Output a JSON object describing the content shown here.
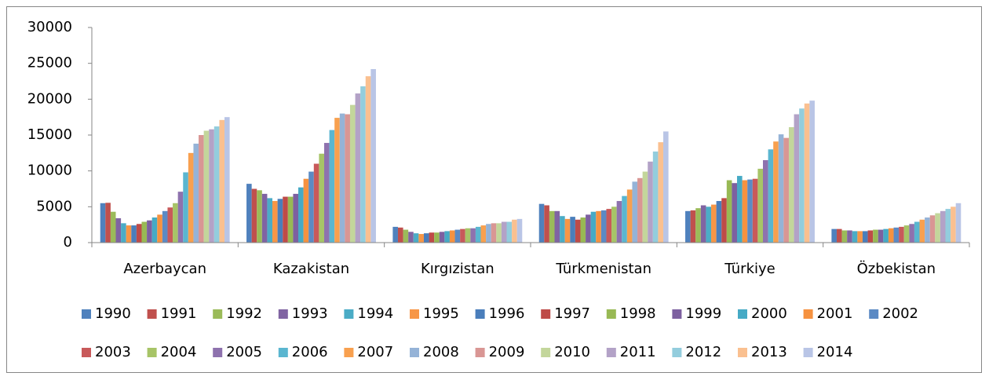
{
  "chart_data": {
    "type": "bar",
    "categories": [
      "Azerbaycan",
      "Kazakistan",
      "Kırgızistan",
      "Türkmenistan",
      "Türkiye",
      "Özbekistan"
    ],
    "ylim": [
      0,
      30000
    ],
    "yticks": [
      0,
      5000,
      10000,
      15000,
      20000,
      25000,
      30000
    ],
    "grid": false,
    "legend": "bottom",
    "series": [
      {
        "name": "1990",
        "color": "#4F81BD",
        "values": [
          5500,
          8200,
          2200,
          5400,
          4400,
          1900
        ]
      },
      {
        "name": "1991",
        "color": "#C0504D",
        "values": [
          5550,
          7500,
          2100,
          5200,
          4500,
          1900
        ]
      },
      {
        "name": "1992",
        "color": "#9BBB59",
        "values": [
          4300,
          7300,
          1800,
          4400,
          4800,
          1700
        ]
      },
      {
        "name": "1993",
        "color": "#8064A2",
        "values": [
          3400,
          6800,
          1500,
          4400,
          5200,
          1700
        ]
      },
      {
        "name": "1994",
        "color": "#4BACC6",
        "values": [
          2700,
          6200,
          1300,
          3700,
          5000,
          1600
        ]
      },
      {
        "name": "1995",
        "color": "#F79646",
        "values": [
          2400,
          5800,
          1200,
          3300,
          5300,
          1600
        ]
      },
      {
        "name": "1996",
        "color": "#4A7EBB",
        "values": [
          2400,
          6100,
          1300,
          3600,
          5800,
          1600
        ]
      },
      {
        "name": "1997",
        "color": "#BE4B48",
        "values": [
          2600,
          6400,
          1400,
          3200,
          6200,
          1700
        ]
      },
      {
        "name": "1998",
        "color": "#98B954",
        "values": [
          2900,
          6400,
          1400,
          3500,
          8700,
          1800
        ]
      },
      {
        "name": "1999",
        "color": "#7D60A0",
        "values": [
          3100,
          6800,
          1500,
          3900,
          8300,
          1800
        ]
      },
      {
        "name": "2000",
        "color": "#46AAC5",
        "values": [
          3500,
          7700,
          1600,
          4300,
          9300,
          1900
        ]
      },
      {
        "name": "2001",
        "color": "#F69240",
        "values": [
          3900,
          8900,
          1700,
          4400,
          8700,
          2000
        ]
      },
      {
        "name": "2002",
        "color": "#5B8AC4",
        "values": [
          4400,
          9900,
          1800,
          4500,
          8800,
          2100
        ]
      },
      {
        "name": "2003",
        "color": "#C8595A",
        "values": [
          4900,
          11000,
          1900,
          4700,
          8900,
          2200
        ]
      },
      {
        "name": "2004",
        "color": "#A7C467",
        "values": [
          5500,
          12400,
          2000,
          5000,
          10300,
          2400
        ]
      },
      {
        "name": "2005",
        "color": "#8E72AE",
        "values": [
          7100,
          13900,
          2000,
          5800,
          11500,
          2600
        ]
      },
      {
        "name": "2006",
        "color": "#5AB6D0",
        "values": [
          9800,
          15700,
          2200,
          6500,
          13000,
          2900
        ]
      },
      {
        "name": "2007",
        "color": "#F8A04F",
        "values": [
          12500,
          17400,
          2400,
          7400,
          14100,
          3200
        ]
      },
      {
        "name": "2008",
        "color": "#95B3D7",
        "values": [
          13800,
          18000,
          2600,
          8500,
          15100,
          3500
        ]
      },
      {
        "name": "2009",
        "color": "#D99694",
        "values": [
          15000,
          17900,
          2700,
          9000,
          14600,
          3800
        ]
      },
      {
        "name": "2010",
        "color": "#C3D69B",
        "values": [
          15600,
          19200,
          2700,
          9900,
          16100,
          4100
        ]
      },
      {
        "name": "2011",
        "color": "#B3A2C7",
        "values": [
          15800,
          20800,
          2900,
          11300,
          17900,
          4400
        ]
      },
      {
        "name": "2012",
        "color": "#93CDDD",
        "values": [
          16200,
          21800,
          2900,
          12700,
          18700,
          4700
        ]
      },
      {
        "name": "2013",
        "color": "#FAC090",
        "values": [
          17100,
          23200,
          3200,
          14000,
          19400,
          5000
        ]
      },
      {
        "name": "2014",
        "color": "#B9C5E6",
        "values": [
          17500,
          24200,
          3300,
          15500,
          19800,
          5500
        ]
      }
    ]
  }
}
